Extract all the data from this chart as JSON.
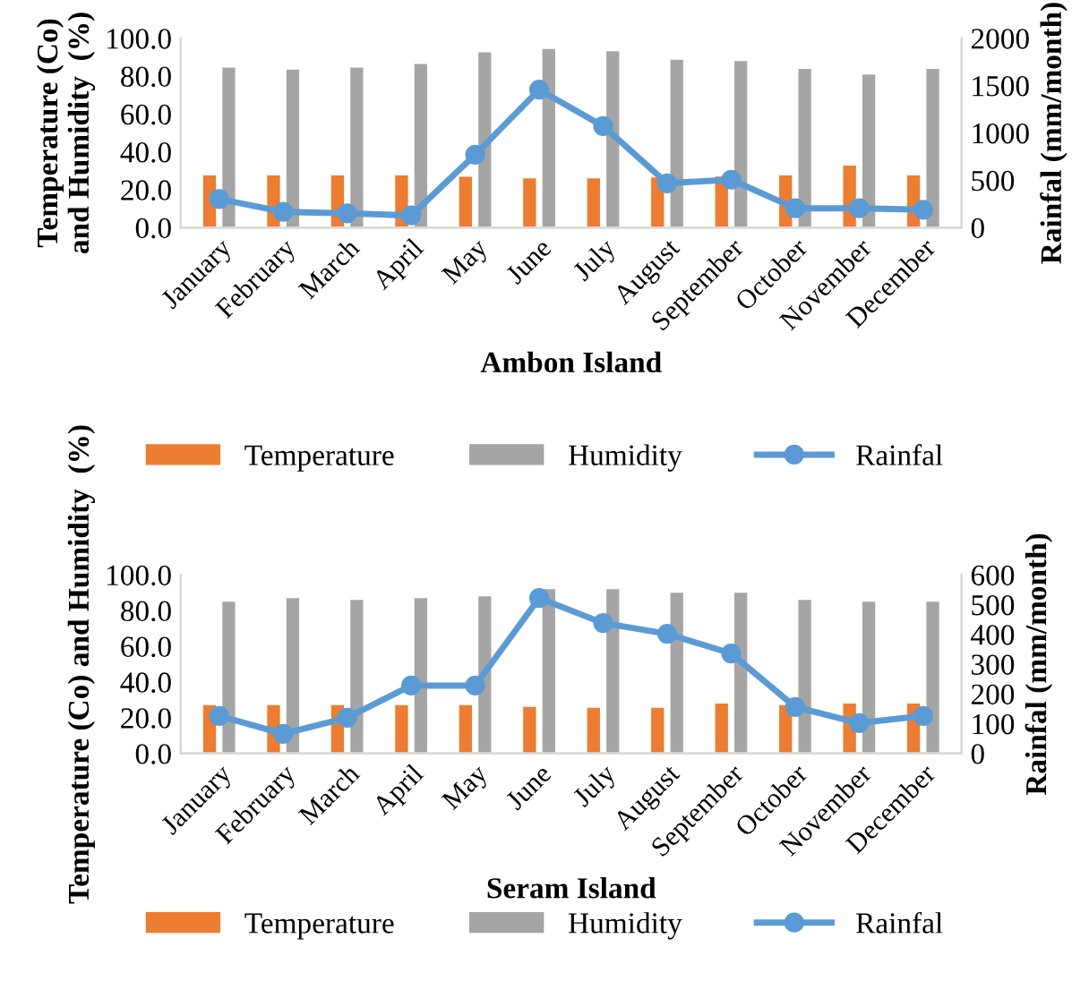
{
  "chart_data": [
    {
      "type": "bar",
      "xlabel": "Ambon Island",
      "ylabel": "Temperature (Co) and Humidity  (%)",
      "y2label": "Rainfal (mm/month)",
      "categories": [
        "January",
        "February",
        "March",
        "April",
        "May",
        "June",
        "July",
        "August",
        "September",
        "October",
        "November",
        "December"
      ],
      "series": [
        {
          "name": "Temperature",
          "color": "#ed7d31",
          "values": [
            27.5,
            27.5,
            27.5,
            27.5,
            26.8,
            26.0,
            26.0,
            26.5,
            27.0,
            27.5,
            32.8,
            27.5
          ]
        },
        {
          "name": "Humidity",
          "color": "#a5a5a5",
          "values": [
            84.5,
            83.4,
            84.5,
            86.4,
            92.5,
            94.3,
            93.2,
            88.7,
            87.9,
            83.8,
            80.8,
            83.8
          ]
        },
        {
          "name": "Rainfal",
          "type": "line",
          "axis": "y2",
          "marker": "circle",
          "color": "#5b9bd5",
          "values": [
            302,
            166,
            151,
            128,
            770,
            1457,
            1072,
            468,
            506,
            204,
            204,
            189
          ]
        }
      ],
      "ylim": [
        0,
        100
      ],
      "yticks": [
        {
          "value": 0,
          "label": "0.0"
        },
        {
          "value": 20,
          "label": "20.0"
        },
        {
          "value": 40,
          "label": "40.0"
        },
        {
          "value": 60,
          "label": "60.0"
        },
        {
          "value": 80,
          "label": "80.0"
        },
        {
          "value": 100,
          "label": "100.0"
        }
      ],
      "y2lim": [
        0,
        2000
      ],
      "y2ticks": [
        0,
        500,
        1000,
        1500,
        2000
      ],
      "legend": "bottom"
    },
    {
      "type": "bar",
      "xlabel": "Seram Island",
      "ylabel": "Temperature (Co) and Humidity  (%)",
      "y2label": "Rainfal (mm/month)",
      "categories": [
        "January",
        "February",
        "March",
        "April",
        "May",
        "June",
        "July",
        "August",
        "September",
        "October",
        "November",
        "December"
      ],
      "series": [
        {
          "name": "Temperature",
          "color": "#ed7d31",
          "values": [
            27.0,
            27.0,
            27.0,
            27.0,
            27.0,
            26.0,
            25.5,
            25.5,
            28.0,
            27.0,
            28.0,
            28.0
          ]
        },
        {
          "name": "Humidity",
          "color": "#a5a5a5",
          "values": [
            85,
            87,
            86,
            87,
            88,
            92,
            92,
            90,
            90,
            86,
            85,
            85
          ]
        },
        {
          "name": "Rainfal",
          "type": "line",
          "axis": "y2",
          "marker": "circle",
          "color": "#5b9bd5",
          "values": [
            126,
            66,
            120,
            228,
            228,
            522,
            438,
            402,
            336,
            156,
            102,
            126
          ]
        }
      ],
      "ylim": [
        0,
        100
      ],
      "yticks": [
        {
          "value": 0,
          "label": "0.0"
        },
        {
          "value": 20,
          "label": "20.0"
        },
        {
          "value": 40,
          "label": "40.0"
        },
        {
          "value": 60,
          "label": "60.0"
        },
        {
          "value": 80,
          "label": "80.0"
        },
        {
          "value": 100,
          "label": "100.0"
        }
      ],
      "y2lim": [
        0,
        600
      ],
      "y2ticks": [
        0,
        100,
        200,
        300,
        400,
        500,
        600
      ],
      "legend": "bottom"
    }
  ]
}
